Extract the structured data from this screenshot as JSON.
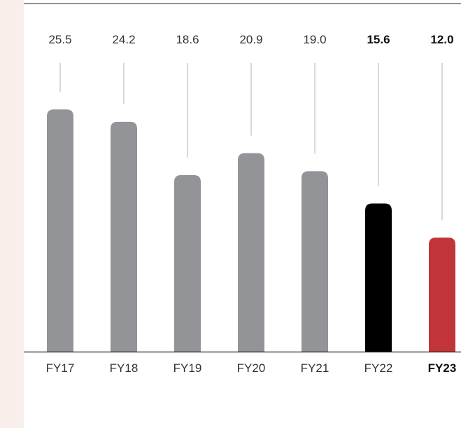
{
  "chart_data": {
    "type": "bar",
    "title": "",
    "xlabel": "",
    "ylabel": "",
    "categories": [
      "FY17",
      "FY18",
      "FY19",
      "FY20",
      "FY21",
      "FY22",
      "FY23"
    ],
    "values": [
      25.5,
      24.2,
      18.6,
      20.9,
      19.0,
      15.6,
      12.0
    ],
    "value_labels": [
      "25.5",
      "24.2",
      "18.6",
      "20.9",
      "19.0",
      "15.6",
      "12.0"
    ],
    "bar_colors": [
      "#939497",
      "#939497",
      "#939497",
      "#939497",
      "#939497",
      "#000000",
      "#c1343a"
    ],
    "emphasis": [
      false,
      false,
      false,
      false,
      false,
      true,
      true
    ],
    "category_emphasis": [
      false,
      false,
      false,
      false,
      false,
      false,
      true
    ],
    "ylim": [
      0,
      26.7
    ],
    "grid": false,
    "legend": "none"
  },
  "colors": {
    "background": "#ffffff",
    "side_strip": "#f8efea",
    "axis": "#222222",
    "leader": "#bdbdbd"
  }
}
